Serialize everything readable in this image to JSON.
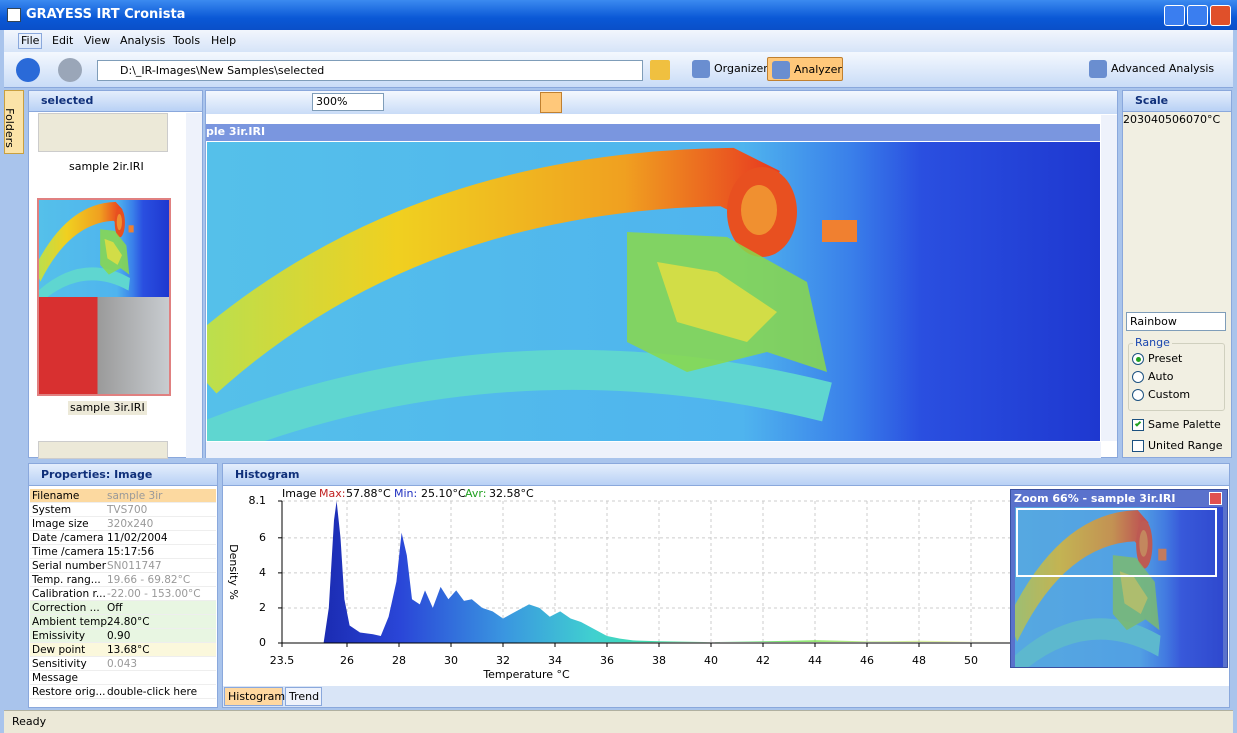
{
  "window": {
    "title": "GRAYESS IRT Cronista"
  },
  "menu": [
    "File",
    "Edit",
    "View",
    "Analysis",
    "Tools",
    "Help"
  ],
  "toolbar": {
    "address": "D:\\_IR-Images\\New Samples\\selected",
    "buttons": [
      "Organizer",
      "Analyzer",
      "Advanced Analysis"
    ]
  },
  "folders_tab": "Folders",
  "thumbnails": {
    "title": "selected",
    "items": [
      "sample 2ir.IRI",
      "sample 3ir.IRI"
    ]
  },
  "image_view": {
    "zoom": "300%",
    "title": "ple 3ir.IRI"
  },
  "scale": {
    "title": "Scale",
    "unit": "°C",
    "lim": [
      20,
      70
    ],
    "ticks": [
      20,
      30,
      40,
      50,
      60,
      70
    ],
    "palette": "Rainbow",
    "range_title": "Range",
    "range_options": [
      {
        "label": "Preset",
        "selected": true
      },
      {
        "label": "Auto",
        "selected": false
      },
      {
        "label": "Custom",
        "selected": false
      }
    ],
    "checkboxes": [
      {
        "label": "Same Palette",
        "checked": true
      },
      {
        "label": "United Range",
        "checked": false
      }
    ]
  },
  "properties": {
    "title": "Properties: Image",
    "rows": [
      {
        "key": "Filename",
        "value": "sample 3ir",
        "tone": "selected"
      },
      {
        "key": "System",
        "value": "TVS700",
        "tone": "readonly"
      },
      {
        "key": "Image size",
        "value": "320x240",
        "tone": "readonly"
      },
      {
        "key": "Date /camera",
        "value": "11/02/2004",
        "tone": "normal"
      },
      {
        "key": "Time /camera",
        "value": "15:17:56",
        "tone": "normal"
      },
      {
        "key": "Serial number",
        "value": "SN011747",
        "tone": "readonly"
      },
      {
        "key": "Temp. rang...",
        "value": "19.66 - 69.82°C",
        "tone": "readonly"
      },
      {
        "key": "Calibration r...",
        "value": "-22.00 - 153.00°C",
        "tone": "readonly"
      },
      {
        "key": "Correction ...",
        "value": "Off",
        "tone": "changed"
      },
      {
        "key": "Ambient temp.",
        "value": "24.80°C",
        "tone": "changed"
      },
      {
        "key": "Emissivity",
        "value": "0.90",
        "tone": "changed"
      },
      {
        "key": "Dew point",
        "value": "13.68°C",
        "tone": "dew"
      },
      {
        "key": "Sensitivity",
        "value": "0.043",
        "tone": "readonly"
      },
      {
        "key": "Message",
        "tone": "normal"
      },
      {
        "key": "Restore orig...",
        "value": "double-click here",
        "tone": "normal"
      }
    ]
  },
  "histogram": {
    "type": "area",
    "title": "Histogram",
    "legend": {
      "source": "Image",
      "max_label": "Max:",
      "max": "57.88°C",
      "min_label": "Min:",
      "min": "25.10°C",
      "avg_label": "Avr:",
      "avg": "32.58°C"
    },
    "x_label": "Temperature °C",
    "y_label": "Density %",
    "xlim": [
      23.5,
      52
    ],
    "xticks": [
      23.5,
      26,
      28,
      30,
      32,
      34,
      36,
      38,
      40,
      42,
      44,
      46,
      48,
      50
    ],
    "ylim": [
      0,
      8.1
    ],
    "yticks": [
      0,
      2,
      4,
      6,
      8.1
    ],
    "grid": true,
    "temperature": [
      25.1,
      25.3,
      25.5,
      25.6,
      25.75,
      25.9,
      26.1,
      26.5,
      27,
      27.3,
      27.6,
      27.9,
      28.1,
      28.3,
      28.5,
      28.8,
      29,
      29.3,
      29.6,
      29.9,
      30.2,
      30.5,
      30.8,
      31.2,
      31.6,
      32,
      32.5,
      33,
      33.4,
      33.8,
      34.2,
      34.6,
      35,
      35.5,
      36,
      36.5,
      37,
      38,
      40,
      42,
      44,
      46,
      48,
      50,
      52
    ],
    "density": [
      0,
      2,
      7,
      8.1,
      6,
      2.5,
      1,
      0.6,
      0.5,
      0.4,
      1.5,
      3.5,
      6.3,
      5,
      2.5,
      2.2,
      3,
      2,
      3.2,
      2.5,
      3,
      2.4,
      2.5,
      2,
      1.8,
      1.4,
      1.8,
      2.2,
      2,
      1.5,
      1.8,
      1.4,
      1.2,
      0.8,
      0.4,
      0.25,
      0.15,
      0.1,
      0.05,
      0.1,
      0.15,
      0.1,
      0.12,
      0.1,
      0.1
    ],
    "tabs": [
      "Histogram",
      "Trend"
    ],
    "zoom_title": "Zoom 66% - sample 3ir.IRI"
  },
  "status": "Ready"
}
